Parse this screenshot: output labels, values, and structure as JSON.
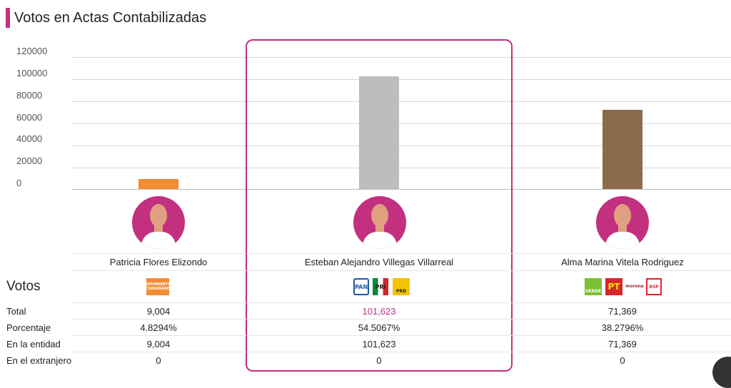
{
  "title": "Votos en Actas Contabilizadas",
  "y_axis": {
    "ticks": [
      "120000",
      "100000",
      "80000",
      "60000",
      "40000",
      "20000",
      "0"
    ]
  },
  "candidates": [
    {
      "name": "Patricia Flores Elizondo",
      "votes_value": 9004,
      "bar_color": "#f28c35",
      "total": "9,004",
      "porcentaje": "4.8294%",
      "entidad": "9,004",
      "extranjero": "0"
    },
    {
      "name": "Esteban Alejandro Villegas Villarreal",
      "votes_value": 101623,
      "bar_color": "#bdbdbd",
      "total": "101,623",
      "porcentaje": "54.5067%",
      "entidad": "101,623",
      "extranjero": "0"
    },
    {
      "name": "Alma Marina Vitela Rodriguez",
      "votes_value": 71369,
      "bar_color": "#8b6b4c",
      "total": "71,369",
      "porcentaje": "38.2796%",
      "entidad": "71,369",
      "extranjero": "0"
    }
  ],
  "rows": {
    "votos": "Votos",
    "total": "Total",
    "porcentaje": "Porcentaje",
    "entidad": "En la entidad",
    "extranjero": "En el extranjero"
  },
  "party_logos": {
    "c0": [
      {
        "label": "MOVIMIENTO CIUDADANO",
        "color": "#f28c35"
      }
    ],
    "c1": [
      {
        "label": "PAN",
        "color": "#1b5aa6"
      },
      {
        "label": "PRI",
        "color": "#0a8a3c"
      },
      {
        "label": "PRD",
        "color": "#f2c300"
      }
    ],
    "c2": [
      {
        "label": "VERDE",
        "color": "#7bbf35"
      },
      {
        "label": "PT",
        "color": "#d6262a"
      },
      {
        "label": "morena",
        "color": "#a52a2a"
      },
      {
        "label": "RSP",
        "color": "#e0242f"
      }
    ]
  },
  "accent_color": "#c2307f",
  "total_highlight_color": "#c2307f"
}
